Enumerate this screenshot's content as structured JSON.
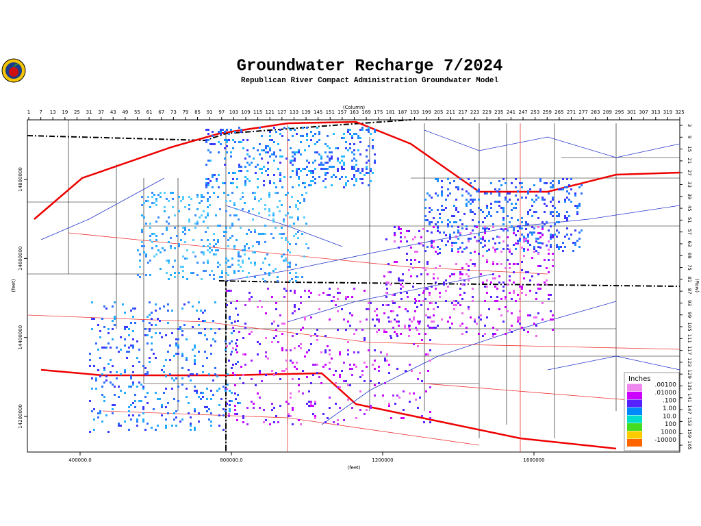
{
  "header": {
    "title": "Groundwater Recharge 7/2024",
    "subtitle": "Republican River Compact Administration Groundwater Model"
  },
  "axes": {
    "column_label": "(Column)",
    "row_label": "(Row)",
    "x_feet_label": "(feet)",
    "y_feet_label": "(feet)",
    "columns": [
      1,
      7,
      13,
      19,
      25,
      31,
      37,
      43,
      49,
      55,
      61,
      67,
      73,
      79,
      85,
      91,
      97,
      103,
      109,
      115,
      121,
      127,
      133,
      139,
      145,
      151,
      157,
      163,
      169,
      175,
      181,
      187,
      193,
      199,
      205,
      211,
      217,
      223,
      229,
      235,
      241,
      247,
      253,
      259,
      265,
      271,
      277,
      283,
      289,
      295,
      301,
      307,
      313,
      319,
      325
    ],
    "rows": [
      3,
      9,
      15,
      21,
      27,
      33,
      39,
      45,
      51,
      57,
      63,
      69,
      75,
      81,
      87,
      93,
      99,
      105,
      111,
      117,
      123,
      129,
      135,
      141,
      147,
      153,
      159,
      165
    ],
    "x_feet": [
      {
        "value": 400000,
        "label": "400000.0"
      },
      {
        "value": 800000,
        "label": "800000.0"
      },
      {
        "value": 1200000,
        "label": "1200000"
      },
      {
        "value": 1600000,
        "label": "1600000"
      }
    ],
    "y_feet": [
      14800000,
      14600000,
      14400000,
      14200000
    ]
  },
  "legend": {
    "title": "Inches",
    "entries": [
      {
        "label": ".00100",
        "color": "#ee88ee"
      },
      {
        "label": ".01000",
        "color": "#cc00ff"
      },
      {
        "label": ".100",
        "color": "#5522ff"
      },
      {
        "label": "1.00",
        "color": "#0088ff"
      },
      {
        "label": "10.0",
        "color": "#00ddcc"
      },
      {
        "label": "100",
        "color": "#44dd22"
      },
      {
        "label": "1000",
        "color": "#ffcc00"
      },
      {
        "label": "-10000",
        "color": "#ff6600"
      }
    ]
  }
}
